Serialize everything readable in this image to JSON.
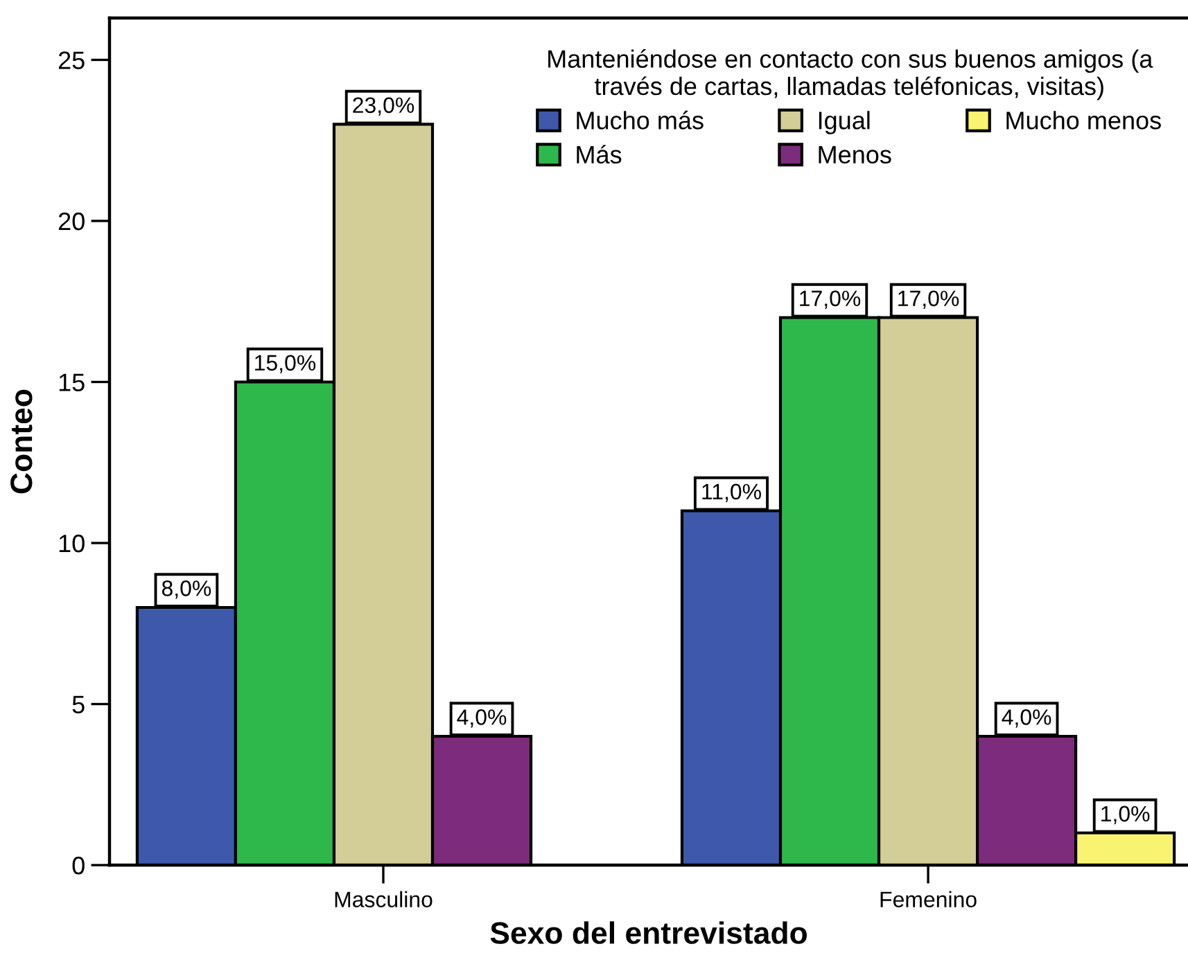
{
  "chart_data": {
    "type": "bar",
    "xlabel": "Sexo del entrevistado",
    "ylabel": "Conteo",
    "legend_title": "Manteniéndose en contacto con sus buenos amigos (a\ntravés de cartas, llamadas teléfonicas, visitas)",
    "categories": [
      "Masculino",
      "Femenino"
    ],
    "series": [
      {
        "name": "Mucho más",
        "color": "#3e59ab",
        "values": [
          8,
          11
        ],
        "value_labels": [
          "8,0%",
          "11,0%"
        ]
      },
      {
        "name": "Más",
        "color": "#2eb84b",
        "values": [
          15,
          17
        ],
        "value_labels": [
          "15,0%",
          "17,0%"
        ]
      },
      {
        "name": "Igual",
        "color": "#d3cd97",
        "values": [
          23,
          17
        ],
        "value_labels": [
          "23,0%",
          "17,0%"
        ]
      },
      {
        "name": "Menos",
        "color": "#7d2b7c",
        "values": [
          4,
          4
        ],
        "value_labels": [
          "4,0%",
          "4,0%"
        ]
      },
      {
        "name": "Mucho menos",
        "color": "#f8f470",
        "values": [
          null,
          1
        ],
        "value_labels": [
          null,
          "1,0%"
        ]
      }
    ],
    "ylim": [
      0,
      26.3
    ],
    "yticks": [
      0,
      5,
      10,
      15,
      20,
      25
    ],
    "legend": "top right"
  }
}
